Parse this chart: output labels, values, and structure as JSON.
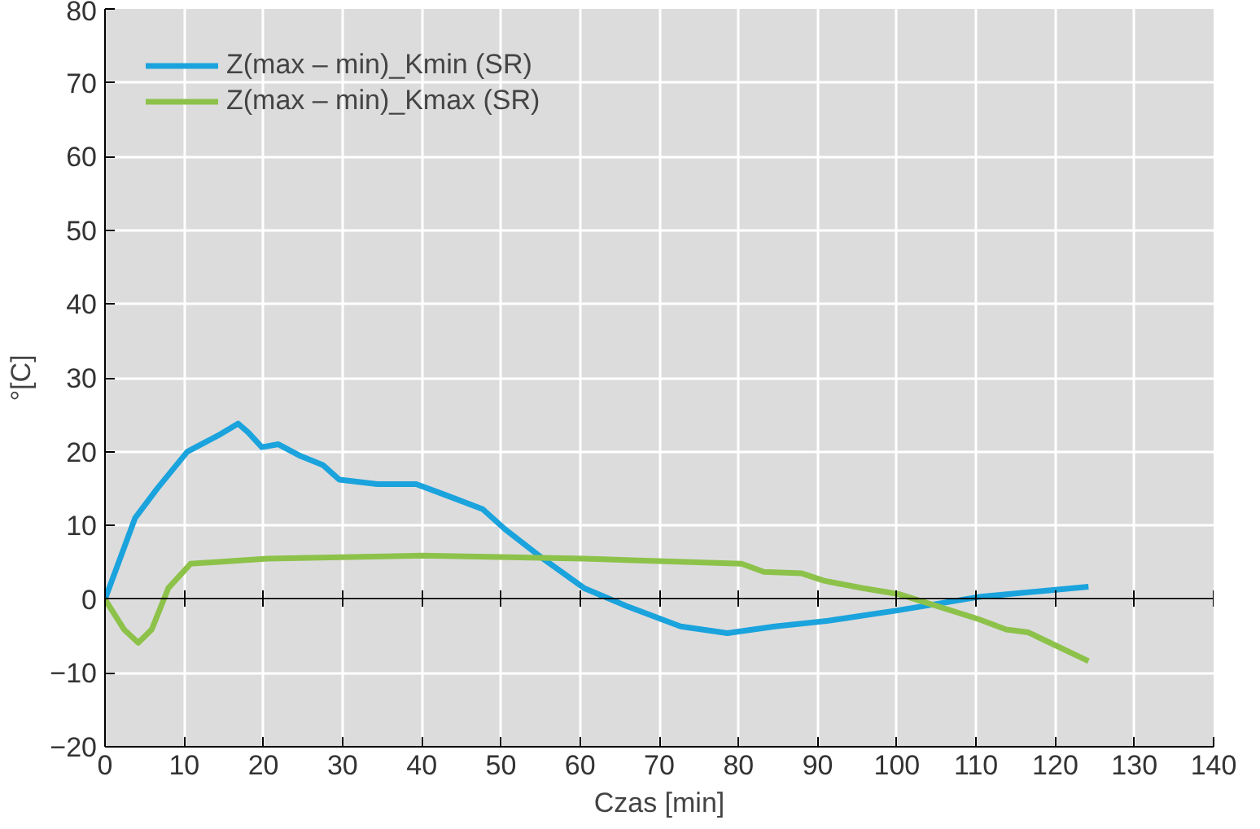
{
  "chart_data": {
    "type": "line",
    "xlabel": "Czas [min]",
    "ylabel": "°[C]",
    "xlim": [
      0,
      140
    ],
    "xticks": [
      0,
      10,
      20,
      30,
      40,
      50,
      60,
      70,
      80,
      90,
      100,
      110,
      120,
      130,
      140
    ],
    "ylim": [
      -20,
      80
    ],
    "yticks": [
      -20,
      -10,
      0,
      10,
      20,
      30,
      40,
      50,
      60,
      70,
      80
    ],
    "grid": true,
    "legend": "top left",
    "line_style": "solid",
    "marker": "none",
    "series": [
      {
        "name": "Z(max – min)_Kmin (SR)",
        "color": "#1aa3dc",
        "x": [
          0,
          3.8,
          6.6,
          10.4,
          14.3,
          16.8,
          18.1,
          19.8,
          21.9,
          24.7,
          27.5,
          29.6,
          34.4,
          39.3,
          42.8,
          47.7,
          50.5,
          55.3,
          60.5,
          65.8,
          72.7,
          78.6,
          84.6,
          91.5,
          100.2,
          110.3,
          124.2
        ],
        "values": [
          0,
          11,
          15,
          20,
          22.2,
          23.8,
          22.6,
          20.6,
          21,
          19.4,
          18.2,
          16.2,
          15.6,
          15.6,
          14.2,
          12.2,
          9.5,
          5.5,
          1.5,
          -0.9,
          -3.7,
          -4.6,
          -3.7,
          -2.9,
          -1.5,
          0.3,
          1.7
        ]
      },
      {
        "name": "Z(max – min)_Kmax (SR)",
        "color": "#8dc24a",
        "x": [
          0,
          2.4,
          4.2,
          5.9,
          8,
          10.8,
          20.5,
          40,
          51.1,
          60.5,
          80.4,
          83.2,
          88,
          90.8,
          95.7,
          100.2,
          110.3,
          113.8,
          116.6,
          124.2
        ],
        "values": [
          0,
          -4.1,
          -5.9,
          -4.1,
          1.5,
          4.8,
          5.5,
          5.9,
          5.7,
          5.5,
          4.8,
          3.7,
          3.5,
          2.5,
          1.5,
          0.7,
          -2.7,
          -4.1,
          -4.5,
          -8.4
        ]
      }
    ]
  }
}
